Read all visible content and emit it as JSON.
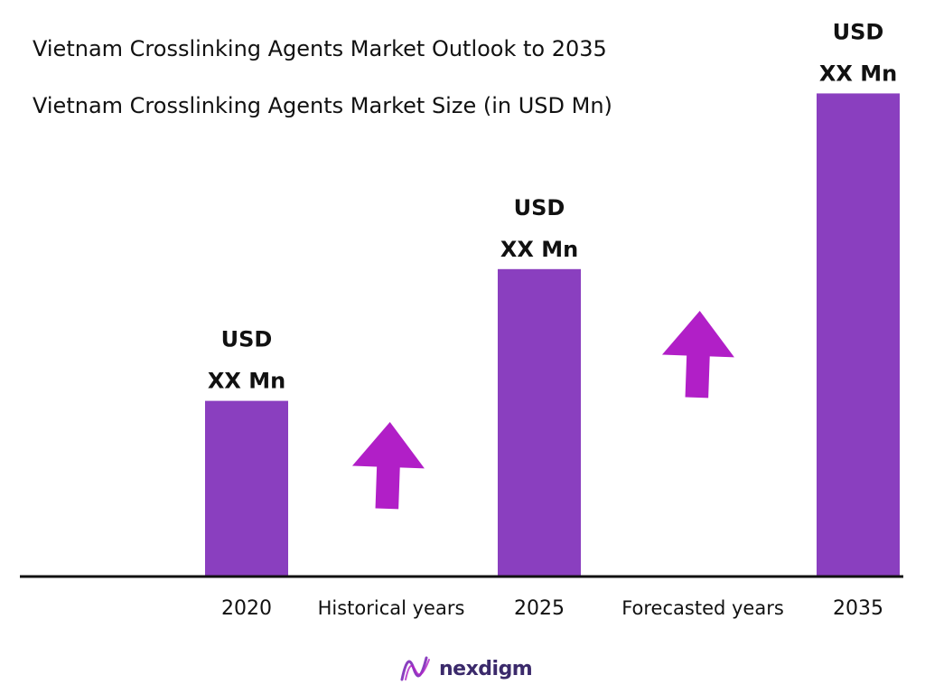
{
  "header": {
    "title": "Vietnam Crosslinking Agents Market Outlook to 2035",
    "subtitle": "Vietnam Crosslinking Agents Market Size (in USD Mn)"
  },
  "chart_data": {
    "type": "bar",
    "title": "Vietnam Crosslinking Agents Market Outlook to 2035",
    "subtitle": "Vietnam Crosslinking Agents Market Size (in USD Mn)",
    "categories": [
      "2020",
      "2025",
      "2035"
    ],
    "values": [
      36,
      63,
      99
    ],
    "data_labels": [
      [
        "USD",
        "XX Mn"
      ],
      [
        "USD",
        "XX Mn"
      ],
      [
        "USD",
        "XX Mn"
      ]
    ],
    "period_labels": [
      "Historical years",
      "Forecasted years"
    ],
    "ylim": [
      0,
      100
    ],
    "grid": false,
    "legend": "none",
    "bar_color": "#8a3fbf",
    "arrow_color": "#b11fc7",
    "axis_color": "#111111"
  },
  "brand": {
    "name": "nexdigm",
    "logo_icon": "nexdigm-wave-icon",
    "color": "#3b2a6b"
  }
}
